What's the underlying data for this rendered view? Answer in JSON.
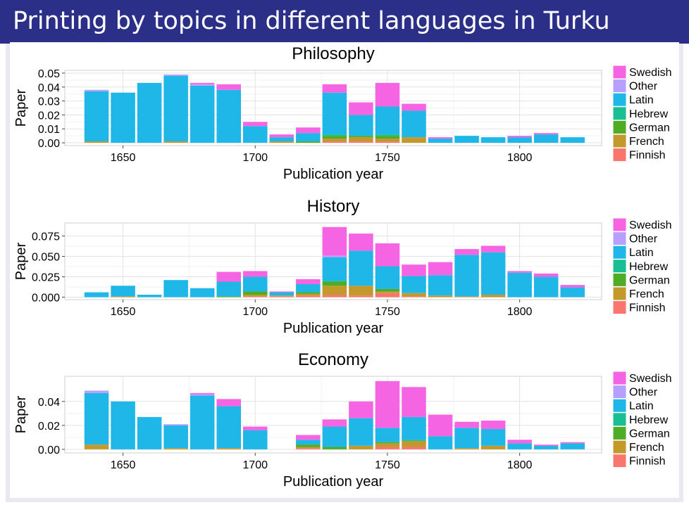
{
  "slide": {
    "title": "Printing by topics in different languages in Turku"
  },
  "colors": {
    "Swedish": "#f564e3",
    "Other": "#b79fff",
    "Latin": "#1fb6e8",
    "Hebrew": "#19bf93",
    "German": "#4ead25",
    "French": "#c4992b",
    "Finnish": "#f8766d"
  },
  "chart_data": [
    {
      "type": "bar",
      "stacked": true,
      "title": "Philosophy",
      "xlabel": "Publication year",
      "ylabel": "Paper",
      "xlim": [
        1628,
        1831
      ],
      "ylim": [
        -0.002,
        0.052
      ],
      "xticks": [
        "1650",
        "1700",
        "1750",
        "1800"
      ],
      "yticks": [
        "0.00",
        "0.01",
        "0.02",
        "0.03",
        "0.04",
        "0.05"
      ],
      "grid": true,
      "legend": {
        "position": "right",
        "entries": [
          "Swedish",
          "Other",
          "Latin",
          "Hebrew",
          "German",
          "French",
          "Finnish"
        ]
      },
      "categories": [
        1640,
        1650,
        1660,
        1670,
        1680,
        1690,
        1700,
        1710,
        1720,
        1730,
        1740,
        1750,
        1760,
        1770,
        1780,
        1790,
        1800,
        1810,
        1820
      ],
      "series": [
        {
          "name": "Finnish",
          "values": [
            0,
            0,
            0,
            0,
            0,
            0,
            0,
            0,
            0,
            0.001,
            0.001,
            0.001,
            0,
            0,
            0,
            0,
            0,
            0,
            0
          ]
        },
        {
          "name": "French",
          "values": [
            0.001,
            0,
            0,
            0.001,
            0,
            0,
            0,
            0.001,
            0,
            0.002,
            0.003,
            0.002,
            0.004,
            0,
            0,
            0,
            0,
            0,
            0
          ]
        },
        {
          "name": "German",
          "values": [
            0,
            0,
            0,
            0,
            0,
            0,
            0,
            0,
            0.001,
            0.002,
            0.001,
            0.002,
            0,
            0,
            0,
            0,
            0,
            0,
            0
          ]
        },
        {
          "name": "Hebrew",
          "values": [
            0,
            0,
            0,
            0,
            0,
            0,
            0,
            0,
            0,
            0.001,
            0,
            0.001,
            0,
            0,
            0,
            0,
            0,
            0,
            0
          ]
        },
        {
          "name": "Latin",
          "values": [
            0.036,
            0.036,
            0.043,
            0.047,
            0.041,
            0.038,
            0.012,
            0.003,
            0.006,
            0.03,
            0.015,
            0.02,
            0.019,
            0.003,
            0.005,
            0.004,
            0.004,
            0.006,
            0.004
          ]
        },
        {
          "name": "Other",
          "values": [
            0.001,
            0,
            0,
            0.001,
            0.001,
            0,
            0,
            0,
            0,
            0,
            0,
            0,
            0,
            0,
            0,
            0,
            0,
            0,
            0
          ]
        },
        {
          "name": "Swedish",
          "values": [
            0,
            0,
            0,
            0,
            0.001,
            0.004,
            0.003,
            0.002,
            0.004,
            0.006,
            0.009,
            0.017,
            0.005,
            0.001,
            0,
            0,
            0.001,
            0.001,
            0
          ]
        }
      ]
    },
    {
      "type": "bar",
      "stacked": true,
      "title": "History",
      "xlabel": "Publication year",
      "ylabel": "Paper",
      "xlim": [
        1628,
        1831
      ],
      "ylim": [
        -0.003,
        0.091
      ],
      "xticks": [
        "1650",
        "1700",
        "1750",
        "1800"
      ],
      "yticks": [
        "0.000",
        "0.025",
        "0.050",
        "0.075"
      ],
      "grid": true,
      "legend": {
        "position": "right",
        "entries": [
          "Swedish",
          "Other",
          "Latin",
          "Hebrew",
          "German",
          "French",
          "Finnish"
        ]
      },
      "categories": [
        1640,
        1650,
        1660,
        1670,
        1680,
        1690,
        1700,
        1710,
        1720,
        1730,
        1740,
        1750,
        1760,
        1770,
        1780,
        1790,
        1800,
        1810,
        1820
      ],
      "series": [
        {
          "name": "Finnish",
          "values": [
            0,
            0,
            0,
            0,
            0,
            0,
            0.001,
            0.001,
            0.002,
            0.003,
            0.002,
            0.005,
            0.001,
            0,
            0,
            0,
            0,
            0,
            0
          ]
        },
        {
          "name": "French",
          "values": [
            0,
            0.001,
            0,
            0,
            0,
            0,
            0.002,
            0.001,
            0.002,
            0.011,
            0.012,
            0.002,
            0.004,
            0.002,
            0.001,
            0.003,
            0,
            0,
            0
          ]
        },
        {
          "name": "German",
          "values": [
            0,
            0,
            0,
            0,
            0,
            0.001,
            0.004,
            0,
            0.002,
            0.005,
            0,
            0.003,
            0,
            0,
            0,
            0,
            0,
            0,
            0
          ]
        },
        {
          "name": "Hebrew",
          "values": [
            0,
            0,
            0,
            0,
            0,
            0,
            0,
            0,
            0,
            0.001,
            0,
            0,
            0,
            0,
            0,
            0,
            0,
            0,
            0
          ]
        },
        {
          "name": "Latin",
          "values": [
            0.006,
            0.013,
            0.003,
            0.021,
            0.011,
            0.018,
            0.018,
            0.004,
            0.01,
            0.029,
            0.043,
            0.028,
            0.021,
            0.025,
            0.051,
            0.052,
            0.03,
            0.025,
            0.012
          ]
        },
        {
          "name": "Other",
          "values": [
            0,
            0,
            0,
            0,
            0,
            0,
            0,
            0,
            0,
            0.002,
            0,
            0,
            0,
            0,
            0,
            0,
            0,
            0,
            0
          ]
        },
        {
          "name": "Swedish",
          "values": [
            0,
            0,
            0,
            0,
            0,
            0.012,
            0.007,
            0.001,
            0.006,
            0.035,
            0.021,
            0.028,
            0.014,
            0.016,
            0.007,
            0.008,
            0.002,
            0.004,
            0.003
          ]
        }
      ]
    },
    {
      "type": "bar",
      "stacked": true,
      "title": "Economy",
      "xlabel": "Publication year",
      "ylabel": "Paper",
      "xlim": [
        1628,
        1831
      ],
      "ylim": [
        -0.003,
        0.061
      ],
      "xticks": [
        "1650",
        "1700",
        "1750",
        "1800"
      ],
      "yticks": [
        "0.00",
        "0.02",
        "0.04"
      ],
      "grid": true,
      "legend": {
        "position": "right",
        "entries": [
          "Swedish",
          "Other",
          "Latin",
          "Hebrew",
          "German",
          "French",
          "Finnish"
        ]
      },
      "categories": [
        1640,
        1650,
        1660,
        1670,
        1680,
        1690,
        1700,
        1720,
        1730,
        1740,
        1750,
        1760,
        1770,
        1780,
        1790,
        1800,
        1810,
        1820
      ],
      "series": [
        {
          "name": "Finnish",
          "values": [
            0,
            0,
            0,
            0,
            0,
            0,
            0,
            0.001,
            0,
            0,
            0.002,
            0.002,
            0,
            0,
            0,
            0,
            0,
            0
          ]
        },
        {
          "name": "French",
          "values": [
            0.004,
            0,
            0,
            0.001,
            0,
            0.001,
            0,
            0.001,
            0,
            0.003,
            0.003,
            0.005,
            0,
            0.001,
            0.003,
            0,
            0,
            0
          ]
        },
        {
          "name": "German",
          "values": [
            0,
            0,
            0,
            0,
            0,
            0,
            0,
            0.002,
            0.002,
            0,
            0.001,
            0,
            0,
            0,
            0,
            0,
            0,
            0
          ]
        },
        {
          "name": "Hebrew",
          "values": [
            0,
            0,
            0,
            0,
            0,
            0,
            0,
            0,
            0,
            0,
            0,
            0.001,
            0,
            0,
            0,
            0,
            0,
            0
          ]
        },
        {
          "name": "Latin",
          "values": [
            0.043,
            0.04,
            0.027,
            0.019,
            0.045,
            0.035,
            0.016,
            0.004,
            0.017,
            0.023,
            0.012,
            0.019,
            0.011,
            0.017,
            0.014,
            0.005,
            0.003,
            0.005
          ]
        },
        {
          "name": "Other",
          "values": [
            0.002,
            0,
            0,
            0.001,
            0.001,
            0,
            0,
            0,
            0,
            0,
            0,
            0,
            0,
            0,
            0,
            0,
            0,
            0
          ]
        },
        {
          "name": "Swedish",
          "values": [
            0,
            0,
            0,
            0,
            0.001,
            0.006,
            0.003,
            0.004,
            0.006,
            0.014,
            0.039,
            0.025,
            0.018,
            0.005,
            0.007,
            0.003,
            0.001,
            0.001
          ]
        }
      ]
    }
  ]
}
